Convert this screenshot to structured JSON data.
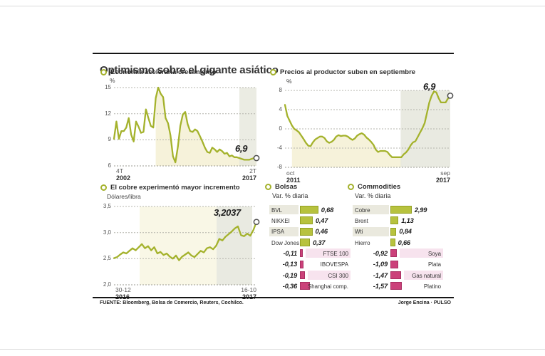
{
  "title": "Optimismo sobre el gigante asiático",
  "colors": {
    "line": "#a4b22c",
    "bar_positive": "#b7c23e",
    "bar_positive_border": "#93a122",
    "bar_negative": "#cb417a",
    "bar_negative_border": "#a92f62",
    "row_band_gray": "#eae9de",
    "row_band_pink": "#f7e3ee",
    "band_yellow": "#f6f2da",
    "band_gray": "#e9eadf",
    "grid": "#b4b4ac",
    "rule": "#151515"
  },
  "panels": {
    "gdp": {
      "title": "Economía aceleraría crecimiento",
      "unit": "%",
      "end_label": "6,9",
      "x_start_period": "4T",
      "x_start_year": "2002",
      "x_end_period": "2T",
      "x_end_year": "2017"
    },
    "ppi": {
      "title": "Precios al productor suben en septiembre",
      "unit": "%",
      "end_label": "6,9",
      "x_start_period": "oct",
      "x_start_year": "2011",
      "x_end_period": "sep",
      "x_end_year": "2017"
    },
    "copper": {
      "title": "El cobre experimentó mayor incremento",
      "unit": "Dólares/libra",
      "end_label": "3,2037",
      "x_start_period": "30-12",
      "x_start_year": "2016",
      "x_end_period": "16-10",
      "x_end_year": "2017"
    },
    "bolsas": {
      "title": "Bolsas",
      "subtitle": "Var. % diaria"
    },
    "commodities": {
      "title": "Commodities",
      "subtitle": "Var. % diaria"
    }
  },
  "footer": {
    "source": "FUENTE: Bloomberg, Bolsa de Comercio, Reuters, Cochilco.",
    "credit": "Jorge Encina · PULSO"
  },
  "chart_data": [
    {
      "type": "line",
      "id": "gdp",
      "title": "Economía aceleraría crecimiento",
      "ylabel": "%",
      "ylim": [
        6,
        15
      ],
      "yticks": [
        15,
        12,
        9,
        6
      ],
      "ytick_labels": [
        "15",
        "12",
        "9",
        "6"
      ],
      "x_range": [
        "4T 2002",
        "2T 2017"
      ],
      "grid": true,
      "end_value": 6.9,
      "end_label": "6,9",
      "bands": [
        {
          "area": true,
          "from": 0.3,
          "to": 1.0,
          "color": "#f6f2da",
          "opacity": 1
        },
        {
          "area": false,
          "from": 0.88,
          "to": 1.0,
          "color": "#e4e5da",
          "opacity": 0.75
        }
      ],
      "values": [
        9.1,
        11.1,
        9.1,
        10.0,
        10.0,
        10.4,
        11.5,
        9.6,
        8.8,
        11.1,
        10.5,
        9.8,
        9.9,
        12.5,
        11.5,
        10.6,
        10.4,
        13.8,
        15.0,
        14.3,
        13.9,
        11.5,
        10.9,
        9.5,
        7.1,
        6.4,
        8.2,
        10.6,
        11.9,
        12.2,
        10.8,
        10.0,
        9.9,
        10.2,
        10.0,
        9.4,
        8.8,
        8.1,
        7.6,
        7.5,
        8.1,
        7.9,
        7.6,
        7.9,
        7.7,
        7.4,
        7.5,
        7.1,
        7.2,
        7.0,
        7.0,
        6.9,
        6.8,
        6.7,
        6.7,
        6.7,
        6.8,
        6.9,
        6.9
      ]
    },
    {
      "type": "line",
      "id": "ppi",
      "title": "Precios al productor suben en septiembre",
      "ylabel": "%",
      "ylim": [
        -8,
        8
      ],
      "yticks": [
        8,
        4,
        0,
        -4,
        -8
      ],
      "ytick_labels": [
        "8",
        "4",
        "0",
        "-4",
        "-8"
      ],
      "x_range": [
        "oct 2011",
        "sep 2017"
      ],
      "grid": true,
      "end_value": 6.9,
      "end_label": "6,9",
      "bands": [
        {
          "area": true,
          "from": 0.04,
          "to": 0.7,
          "color": "#f6f2da",
          "opacity": 1
        },
        {
          "area": false,
          "from": 0.7,
          "to": 1.0,
          "color": "#e4e5da",
          "opacity": 0.8
        }
      ],
      "values": [
        5.0,
        2.7,
        1.7,
        0.7,
        0.0,
        -0.3,
        -0.7,
        -1.4,
        -2.1,
        -2.9,
        -3.5,
        -3.6,
        -2.8,
        -2.2,
        -1.9,
        -1.6,
        -1.6,
        -1.9,
        -2.6,
        -2.9,
        -2.7,
        -2.3,
        -1.6,
        -1.3,
        -1.5,
        -1.4,
        -1.4,
        -1.6,
        -2.0,
        -2.3,
        -2.0,
        -1.4,
        -1.1,
        -0.9,
        -1.2,
        -1.8,
        -2.2,
        -2.7,
        -3.3,
        -4.3,
        -4.8,
        -4.6,
        -4.6,
        -4.6,
        -4.8,
        -5.4,
        -5.9,
        -5.9,
        -5.9,
        -5.9,
        -5.9,
        -5.3,
        -4.9,
        -4.3,
        -3.4,
        -2.8,
        -2.6,
        -1.7,
        -0.8,
        0.1,
        1.2,
        3.3,
        5.5,
        6.9,
        7.8,
        7.6,
        6.4,
        5.5,
        5.5,
        5.5,
        6.3,
        6.9
      ]
    },
    {
      "type": "line",
      "id": "copper",
      "title": "El cobre experimentó mayor incremento",
      "ylabel": "Dólares/libra",
      "ylim": [
        2.0,
        3.5
      ],
      "yticks": [
        3.5,
        3.0,
        2.5,
        2.0
      ],
      "ytick_labels": [
        "3,5",
        "3,0",
        "2,5",
        "2,0"
      ],
      "x_range": [
        "30-12 2016",
        "16-10 2017"
      ],
      "grid": true,
      "end_value": 3.2037,
      "end_label": "3,2037",
      "bands": [
        {
          "area": false,
          "from": 0.18,
          "to": 0.72,
          "color": "#f5f1d6",
          "opacity": 0.6
        },
        {
          "area": false,
          "from": 0.72,
          "to": 0.97,
          "color": "#e4e5da",
          "opacity": 0.8
        }
      ],
      "values": [
        2.51,
        2.53,
        2.58,
        2.62,
        2.6,
        2.65,
        2.7,
        2.66,
        2.72,
        2.78,
        2.7,
        2.74,
        2.66,
        2.72,
        2.6,
        2.63,
        2.57,
        2.6,
        2.54,
        2.5,
        2.56,
        2.47,
        2.54,
        2.58,
        2.62,
        2.56,
        2.53,
        2.59,
        2.65,
        2.62,
        2.7,
        2.72,
        2.68,
        2.75,
        2.88,
        2.85,
        2.92,
        2.97,
        3.02,
        3.08,
        3.12,
        2.95,
        2.93,
        2.98,
        2.94,
        3.05,
        3.2037
      ]
    },
    {
      "type": "bar",
      "id": "bolsas",
      "title": "Bolsas",
      "subtitle": "Var. % diaria",
      "rows": [
        {
          "label": "BVL",
          "value": 0.68,
          "display": "0,68"
        },
        {
          "label": "NIKKEI",
          "value": 0.47,
          "display": "0,47"
        },
        {
          "label": "IPSA",
          "value": 0.46,
          "display": "0,46"
        },
        {
          "label": "Dow Jones",
          "value": 0.37,
          "display": "0,37"
        },
        {
          "label": "FTSE 100",
          "value": -0.11,
          "display": "-0,11"
        },
        {
          "label": "IBOVESPA",
          "value": -0.13,
          "display": "-0,13"
        },
        {
          "label": "CSI 300",
          "value": -0.19,
          "display": "-0,19"
        },
        {
          "label": "Shanghai comp.",
          "value": -0.36,
          "display": "-0,36"
        }
      ]
    },
    {
      "type": "bar",
      "id": "commodities",
      "title": "Commodities",
      "subtitle": "Var. % diaria",
      "rows": [
        {
          "label": "Cobre",
          "value": 2.99,
          "display": "2,99"
        },
        {
          "label": "Brent",
          "value": 1.13,
          "display": "1,13"
        },
        {
          "label": "Wti",
          "value": 0.84,
          "display": "0,84"
        },
        {
          "label": "Hierro",
          "value": 0.66,
          "display": "0,66"
        },
        {
          "label": "Soya",
          "value": -0.92,
          "display": "-0,92"
        },
        {
          "label": "Plata",
          "value": -1.09,
          "display": "-1,09"
        },
        {
          "label": "Gas natural",
          "value": -1.47,
          "display": "-1,47"
        },
        {
          "label": "Platino",
          "value": -1.57,
          "display": "-1,57"
        }
      ]
    }
  ]
}
